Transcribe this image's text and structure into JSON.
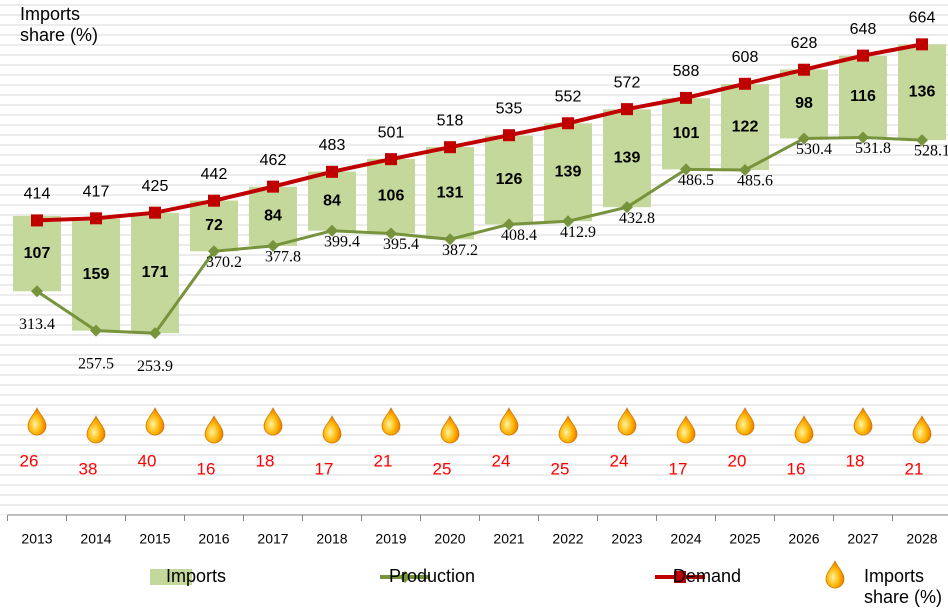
{
  "chart_data": {
    "type": "combo",
    "y_label": "Imports share (%)",
    "categories": [
      "2013",
      "2014",
      "2015",
      "2016",
      "2017",
      "2018",
      "2019",
      "2020",
      "2021",
      "2022",
      "2023",
      "2024",
      "2025",
      "2026",
      "2027",
      "2028"
    ],
    "ylim": [
      0,
      700
    ],
    "series": [
      {
        "name": "Imports",
        "kind": "bar",
        "color": "#c4d89b",
        "stacked_on": "Production",
        "values": [
          107,
          159,
          171,
          72,
          84,
          84,
          106,
          131,
          126,
          139,
          139,
          101,
          122,
          98,
          116,
          136
        ]
      },
      {
        "name": "Production",
        "kind": "line",
        "color": "#77933c",
        "values": [
          313.4,
          257.5,
          253.9,
          370.2,
          377.8,
          399.4,
          395.4,
          387.2,
          408.4,
          412.9,
          432.8,
          486.5,
          485.6,
          530.4,
          531.8,
          528.1
        ]
      },
      {
        "name": "Demand",
        "kind": "line",
        "color": "#c00000",
        "values": [
          414,
          417,
          425,
          442,
          462,
          483,
          501,
          518,
          535,
          552,
          572,
          588,
          608,
          628,
          648,
          664
        ]
      },
      {
        "name": "Imports share (%)",
        "kind": "icon",
        "color": "#ff0000",
        "values": [
          26,
          38,
          40,
          16,
          18,
          17,
          21,
          25,
          24,
          25,
          24,
          17,
          20,
          16,
          18,
          21
        ]
      }
    ]
  }
}
